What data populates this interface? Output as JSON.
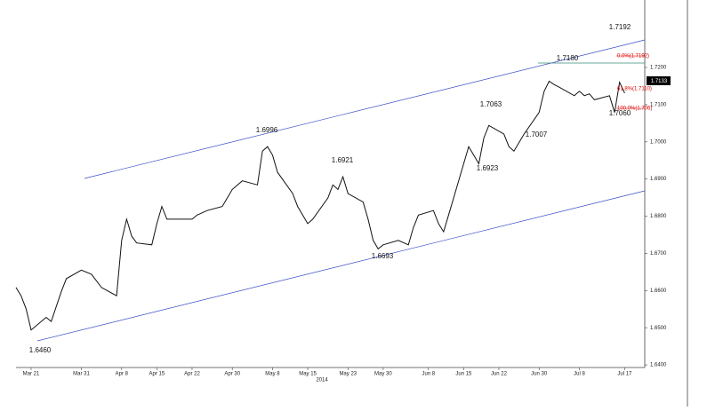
{
  "chart_data": {
    "type": "line",
    "x_period_label": "2014",
    "x": [
      "2014-03-18",
      "2014-03-19",
      "2014-03-20",
      "2014-03-21",
      "2014-03-24",
      "2014-03-25",
      "2014-03-27",
      "2014-03-28",
      "2014-03-31",
      "2014-04-02",
      "2014-04-04",
      "2014-04-07",
      "2014-04-08",
      "2014-04-09",
      "2014-04-10",
      "2014-04-11",
      "2014-04-14",
      "2014-04-15",
      "2014-04-16",
      "2014-04-17",
      "2014-04-22",
      "2014-04-23",
      "2014-04-25",
      "2014-04-28",
      "2014-04-29",
      "2014-04-30",
      "2014-05-02",
      "2014-05-05",
      "2014-05-06",
      "2014-05-07",
      "2014-05-08",
      "2014-05-09",
      "2014-05-12",
      "2014-05-13",
      "2014-05-15",
      "2014-05-16",
      "2014-05-19",
      "2014-05-20",
      "2014-05-21",
      "2014-05-22",
      "2014-05-23",
      "2014-05-26",
      "2014-05-27",
      "2014-05-28",
      "2014-05-29",
      "2014-05-30",
      "2014-06-02",
      "2014-06-04",
      "2014-06-05",
      "2014-06-06",
      "2014-06-09",
      "2014-06-10",
      "2014-06-11",
      "2014-06-12",
      "2014-06-13",
      "2014-06-16",
      "2014-06-17",
      "2014-06-18",
      "2014-06-19",
      "2014-06-20",
      "2014-06-23",
      "2014-06-24",
      "2014-06-25",
      "2014-06-26",
      "2014-06-27",
      "2014-06-30",
      "2014-07-01",
      "2014-07-02",
      "2014-07-03",
      "2014-07-04",
      "2014-07-07",
      "2014-07-08",
      "2014-07-09",
      "2014-07-10",
      "2014-07-11",
      "2014-07-14",
      "2014-07-15",
      "2014-07-16",
      "2014-07-17"
    ],
    "series": [
      {
        "color": "#111111",
        "values": [
          1.6608,
          1.6586,
          1.6551,
          1.6494,
          1.6528,
          1.6517,
          1.6597,
          1.6632,
          1.6655,
          1.6644,
          1.6608,
          1.6586,
          1.6735,
          1.6792,
          1.6746,
          1.6728,
          1.6723,
          1.678,
          1.6826,
          1.6792,
          1.6792,
          1.6803,
          1.6815,
          1.6826,
          1.6849,
          1.6872,
          1.6895,
          1.6884,
          1.6975,
          1.6987,
          1.6964,
          1.6918,
          1.6861,
          1.6826,
          1.678,
          1.6792,
          1.6849,
          1.6884,
          1.6872,
          1.6906,
          1.6861,
          1.6838,
          1.6792,
          1.6735,
          1.6712,
          1.6723,
          1.6735,
          1.6723,
          1.6769,
          1.6803,
          1.6815,
          1.678,
          1.6758,
          1.6803,
          1.6849,
          1.6987,
          1.6964,
          1.6941,
          1.701,
          1.7044,
          1.7021,
          1.6987,
          1.6975,
          1.6998,
          1.7021,
          1.7079,
          1.7136,
          1.7163,
          1.7154,
          1.7147,
          1.7124,
          1.7136,
          1.7124,
          1.7129,
          1.7113,
          1.7124,
          1.7079,
          1.716,
          1.7131
        ]
      }
    ],
    "xlim": [
      "2014-03-18",
      "2014-07-21"
    ],
    "xticks": [
      {
        "value": "2014-03-21",
        "label": "Mar 21"
      },
      {
        "value": "2014-03-31",
        "label": "Mar 31"
      },
      {
        "value": "2014-04-08",
        "label": "Apr 8"
      },
      {
        "value": "2014-04-15",
        "label": "Apr 15"
      },
      {
        "value": "2014-04-22",
        "label": "Apr 22"
      },
      {
        "value": "2014-04-30",
        "label": "Apr 30"
      },
      {
        "value": "2014-05-08",
        "label": "May 8"
      },
      {
        "value": "2014-05-15",
        "label": "May 15"
      },
      {
        "value": "2014-05-23",
        "label": "May 23"
      },
      {
        "value": "2014-05-30",
        "label": "May 30"
      },
      {
        "value": "2014-06-08",
        "label": "Jun 8"
      },
      {
        "value": "2014-06-15",
        "label": "Jun 15"
      },
      {
        "value": "2014-06-22",
        "label": "Jun 22"
      },
      {
        "value": "2014-06-30",
        "label": "Jun 30"
      },
      {
        "value": "2014-07-08",
        "label": "Jul 8"
      },
      {
        "value": "2014-07-17",
        "label": "Jul 17"
      }
    ],
    "ylim": [
      1.6393,
      1.7274
    ],
    "yticks": [
      {
        "value": 1.64,
        "label": "1.6400"
      },
      {
        "value": 1.65,
        "label": "1.6500"
      },
      {
        "value": 1.66,
        "label": "1.6600"
      },
      {
        "value": 1.67,
        "label": "1.6700"
      },
      {
        "value": 1.68,
        "label": "1.6800"
      },
      {
        "value": 1.69,
        "label": "1.6900"
      },
      {
        "value": 1.7,
        "label": "1.7000"
      },
      {
        "value": 1.71,
        "label": "1.7100"
      },
      {
        "value": 1.72,
        "label": "1.7200"
      }
    ],
    "last_price_label": "1.7133",
    "annotations": [
      "1.6460",
      "1.6996",
      "1.6921",
      "1.6693",
      "1.7063",
      "1.6923",
      "1.7007",
      "1.7180",
      "1.7192",
      "1.7060"
    ],
    "fib_labels": [
      "0.0%(1.7192)",
      "61.8%(1.7110)",
      "100.0%(1.706)"
    ]
  }
}
